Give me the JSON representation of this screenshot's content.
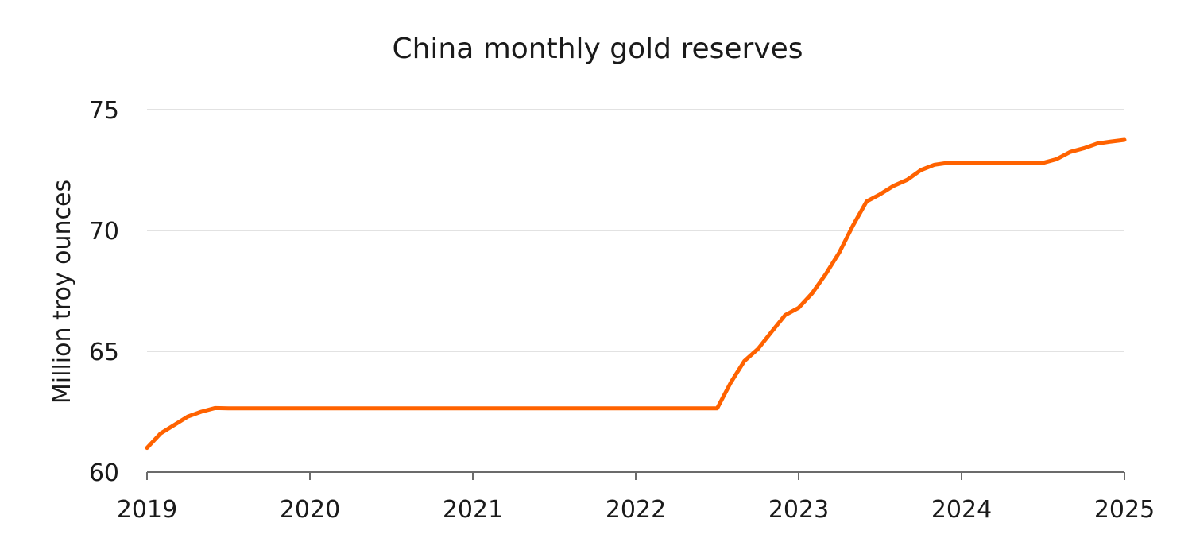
{
  "chart_data": {
    "type": "line",
    "title": "China monthly gold reserves",
    "xlabel": "",
    "ylabel": "Million troy ounces",
    "xlim": [
      2019,
      2025
    ],
    "ylim": [
      60,
      75
    ],
    "x_ticks": [
      "2019",
      "2020",
      "2021",
      "2022",
      "2023",
      "2024",
      "2025"
    ],
    "y_ticks": [
      "60",
      "65",
      "70",
      "75"
    ],
    "grid": "horizontal",
    "legend": "none",
    "colors": {
      "line": "#ff6200",
      "grid": "#d9d9d9",
      "axis": "#6b6b6b"
    },
    "series": [
      {
        "x": [
          2019.0,
          2019.083,
          2019.167,
          2019.25,
          2019.333,
          2019.417,
          2019.5,
          2020.0,
          2020.5,
          2021.0,
          2021.5,
          2022.0,
          2022.5,
          2022.583,
          2022.667,
          2022.75,
          2022.833,
          2022.917,
          2023.0,
          2023.083,
          2023.167,
          2023.25,
          2023.333,
          2023.417,
          2023.5,
          2023.583,
          2023.667,
          2023.75,
          2023.833,
          2023.917,
          2024.0,
          2024.083,
          2024.167,
          2024.25,
          2024.333,
          2024.417,
          2024.5,
          2024.583,
          2024.667,
          2024.75,
          2024.833,
          2024.917,
          2025.0
        ],
        "y": [
          61.0,
          61.6,
          61.95,
          62.3,
          62.5,
          62.65,
          62.64,
          62.64,
          62.64,
          62.64,
          62.64,
          62.64,
          62.64,
          63.7,
          64.6,
          65.1,
          65.8,
          66.5,
          66.8,
          67.4,
          68.2,
          69.1,
          70.2,
          71.2,
          71.5,
          71.85,
          72.1,
          72.5,
          72.72,
          72.8,
          72.8,
          72.8,
          72.8,
          72.8,
          72.8,
          72.8,
          72.8,
          72.95,
          73.25,
          73.4,
          73.6,
          73.68,
          73.75
        ]
      }
    ]
  }
}
